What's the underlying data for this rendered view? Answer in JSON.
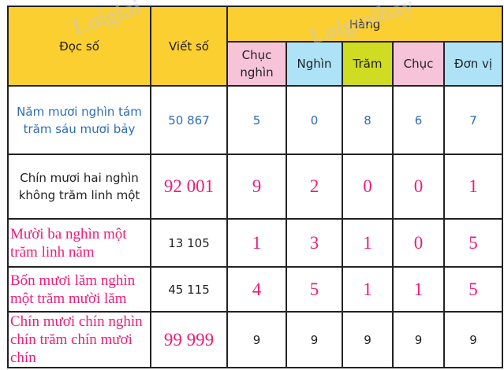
{
  "header": {
    "read": "Đọc số",
    "write": "Viết số",
    "places": "Hàng",
    "columns": [
      "Chục nghìn",
      "Nghìn",
      "Trăm",
      "Chục",
      "Đơn vị"
    ]
  },
  "colors": {
    "header": "#fccf31",
    "pink": "#f7c3d9",
    "blue": "#aee3f7",
    "green": "#cfdc22",
    "text_blue": "#2e6db5",
    "text_pink": "#ee1c7b"
  },
  "watermark": "Loigiaihay",
  "rows": [
    {
      "read": {
        "text": "Năm mươi nghìn tám trăm sáu mươi bảy",
        "style": "blue"
      },
      "write": {
        "text": "50 867",
        "style": "blue"
      },
      "digits": {
        "style": "blue",
        "values": [
          "5",
          "0",
          "8",
          "6",
          "7"
        ]
      }
    },
    {
      "read": {
        "text": "Chín mươi hai nghìn không trăm linh một",
        "style": "black"
      },
      "write": {
        "text": "92 001",
        "style": "pinkbig"
      },
      "digits": {
        "style": "pinkbig",
        "values": [
          "9",
          "2",
          "0",
          "0",
          "1"
        ]
      }
    },
    {
      "read": {
        "text": "Mười ba nghìn một trăm linh năm",
        "style": "pink"
      },
      "write": {
        "text": "13 105",
        "style": "black"
      },
      "digits": {
        "style": "pinkbig",
        "values": [
          "1",
          "3",
          "1",
          "0",
          "5"
        ]
      }
    },
    {
      "read": {
        "text": "Bốn mươi lăm nghìn một trăm mười lăm",
        "style": "pink"
      },
      "write": {
        "text": "45 115",
        "style": "black"
      },
      "digits": {
        "style": "pinkbig",
        "values": [
          "4",
          "5",
          "1",
          "1",
          "5"
        ]
      }
    },
    {
      "read": {
        "text": "Chín mươi chín nghìn chín trăm chín mươi chín",
        "style": "pink"
      },
      "write": {
        "text": "99 999",
        "style": "pinkbig"
      },
      "digits": {
        "style": "black",
        "values": [
          "9",
          "9",
          "9",
          "9",
          "9"
        ]
      }
    }
  ]
}
